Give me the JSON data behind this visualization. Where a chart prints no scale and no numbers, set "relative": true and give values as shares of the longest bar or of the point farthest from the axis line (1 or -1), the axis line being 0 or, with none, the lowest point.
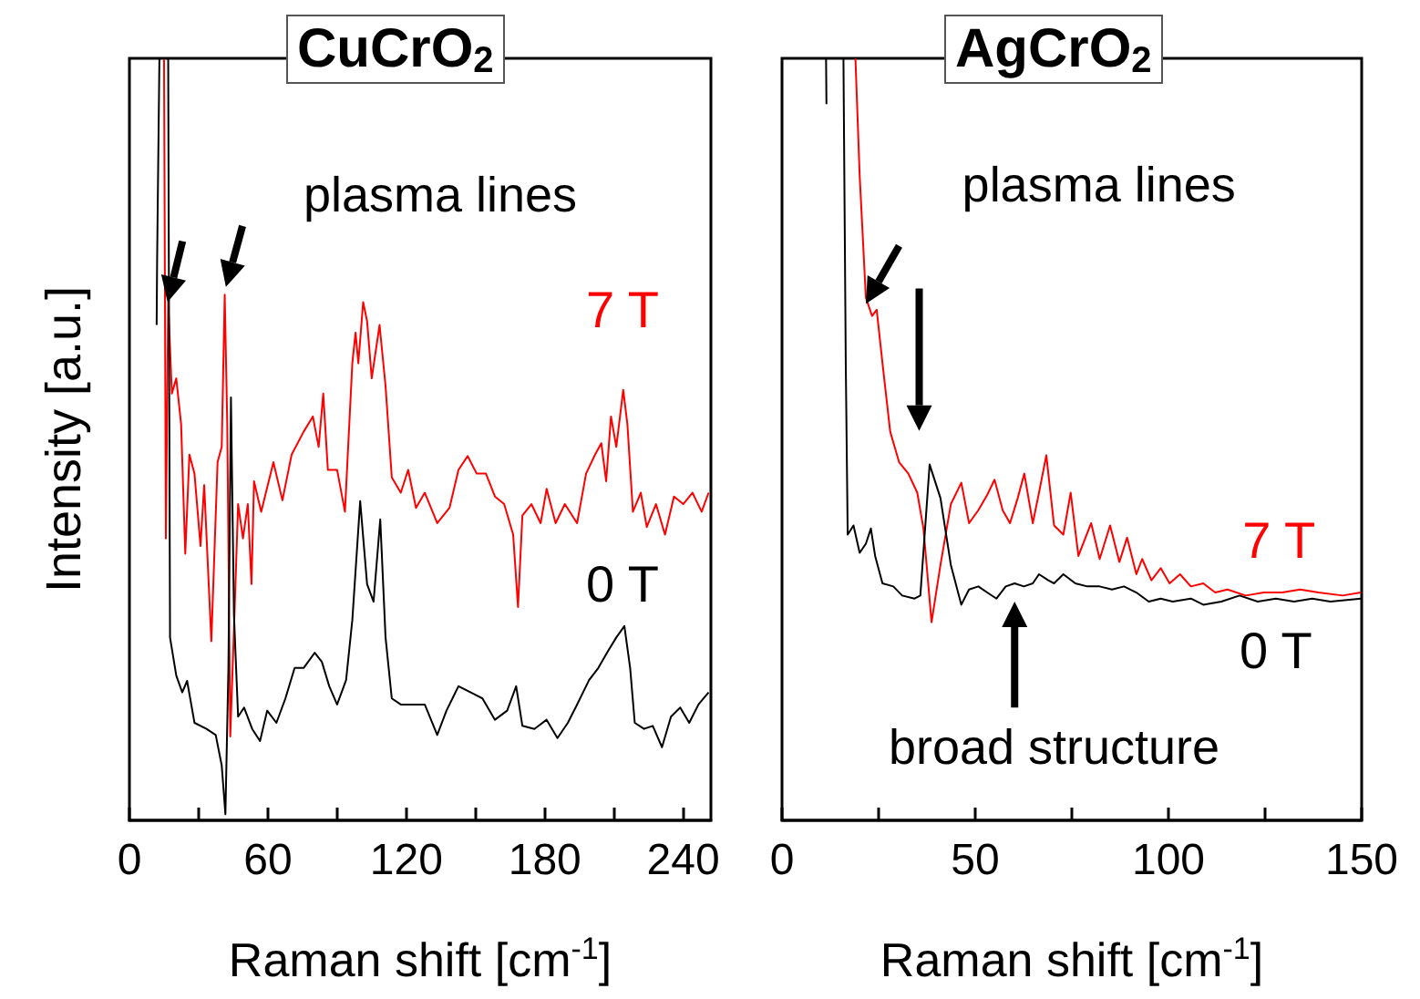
{
  "chart_data": [
    {
      "type": "line",
      "title": "CuCrO$_{2}$",
      "xlabel": "Raman shift [cm$^{-1}$]",
      "ylabel": "Intensity [a.u.]",
      "relative": true,
      "xlim": [
        0,
        252
      ],
      "xticks": [
        0,
        {
          "value": 30,
          "label": null
        },
        60,
        {
          "value": 90,
          "label": null
        },
        120,
        {
          "value": 150,
          "label": null
        },
        180,
        {
          "value": 210,
          "label": null
        },
        240
      ],
      "annotations": [
        "plasma lines"
      ],
      "series": [
        {
          "name": "7 T",
          "color": "#ff0000",
          "x": [
            15,
            15.8,
            16.8,
            18.4,
            20.3,
            22.4,
            24.2,
            26,
            28.2,
            30.8,
            32.4,
            35.5,
            38.2,
            40,
            41.3,
            42.4,
            43.7,
            45.3,
            47.1,
            49.2,
            51.3,
            52.9,
            54,
            57.1,
            62.4,
            66.3,
            70.3,
            75.5,
            79.5,
            82,
            84,
            86,
            90,
            93.4,
            96.6,
            98,
            99.2,
            101.3,
            103,
            105,
            108.4,
            111,
            113.7,
            117.6,
            120.8,
            124.2,
            128,
            133.4,
            138.7,
            142.6,
            146.6,
            150.5,
            154.5,
            158.4,
            162.4,
            166.3,
            168.4,
            170.3,
            174.2,
            178.2,
            180.8,
            184.7,
            188.7,
            194,
            197.9,
            201.8,
            204.5,
            206.6,
            208.7,
            211,
            214,
            215.8,
            218.2,
            221.6,
            224.2,
            228.2,
            232.1,
            236,
            240,
            244,
            248,
            251
          ],
          "values": [
            1,
            0.37,
            0.68,
            0.56,
            0.58,
            0.52,
            0.35,
            0.48,
            0.455,
            0.36,
            0.44,
            0.235,
            0.47,
            0.49,
            0.69,
            0.52,
            0.11,
            0.25,
            0.415,
            0.37,
            0.415,
            0.31,
            0.445,
            0.405,
            0.47,
            0.42,
            0.48,
            0.51,
            0.53,
            0.49,
            0.56,
            0.46,
            0.46,
            0.405,
            0.6,
            0.64,
            0.6,
            0.68,
            0.655,
            0.58,
            0.65,
            0.57,
            0.45,
            0.43,
            0.46,
            0.41,
            0.43,
            0.39,
            0.41,
            0.46,
            0.478,
            0.455,
            0.455,
            0.425,
            0.415,
            0.375,
            0.28,
            0.4,
            0.415,
            0.39,
            0.435,
            0.39,
            0.415,
            0.39,
            0.455,
            0.48,
            0.495,
            0.445,
            0.53,
            0.49,
            0.565,
            0.52,
            0.405,
            0.43,
            0.385,
            0.415,
            0.375,
            0.425,
            0.415,
            0.43,
            0.405,
            0.43
          ]
        },
        {
          "name": "0 T",
          "color": "#000000",
          "x": [
            11.8,
            12,
            13,
            16.8,
            17.6,
            20.3,
            22.9,
            25,
            28.2,
            33.4,
            37.4,
            40,
            41.6,
            42.9,
            44,
            45.3,
            47.1,
            49.7,
            53.2,
            56.6,
            59.7,
            63.7,
            67.6,
            71.6,
            75.5,
            80.3,
            83.4,
            86.6,
            90,
            93.9,
            96.6,
            100,
            103,
            105.8,
            108.7,
            111,
            113.7,
            117.6,
            122.9,
            128,
            133.4,
            137.4,
            142.6,
            147.9,
            153,
            158.4,
            163.7,
            167.6,
            170.3,
            175.5,
            180.8,
            185.5,
            190,
            194,
            199.2,
            203.2,
            207,
            211,
            214.5,
            217,
            219,
            223,
            226.8,
            230.8,
            234.7,
            238.7,
            242.6,
            246.6,
            251
          ],
          "values": [
            0.65,
            0.735,
            1,
            1,
            0.24,
            0.19,
            0.168,
            0.183,
            0.128,
            0.12,
            0.112,
            0.072,
            0.008,
            0.2,
            0.555,
            0.27,
            0.136,
            0.148,
            0.12,
            0.104,
            0.144,
            0.128,
            0.16,
            0.2,
            0.2,
            0.22,
            0.208,
            0.176,
            0.152,
            0.184,
            0.263,
            0.419,
            0.31,
            0.287,
            0.395,
            0.24,
            0.16,
            0.152,
            0.152,
            0.152,
            0.112,
            0.144,
            0.176,
            0.168,
            0.16,
            0.132,
            0.144,
            0.176,
            0.124,
            0.12,
            0.132,
            0.108,
            0.128,
            0.152,
            0.184,
            0.2,
            0.22,
            0.24,
            0.255,
            0.2,
            0.128,
            0.12,
            0.124,
            0.096,
            0.136,
            0.148,
            0.128,
            0.152,
            0.168
          ]
        }
      ]
    },
    {
      "type": "line",
      "title": "AgCrO$_{2}$",
      "xlabel": "Raman shift [cm$^{-1}$]",
      "relative": true,
      "xlim": [
        0,
        150
      ],
      "xticks": [
        0,
        {
          "value": 25,
          "label": null
        },
        50,
        {
          "value": 75,
          "label": null
        },
        100,
        {
          "value": 125,
          "label": null
        },
        150
      ],
      "annotations": [
        "plasma lines",
        "broad structure"
      ],
      "series": [
        {
          "name": "7 T",
          "color": "#ff0000",
          "x": [
            19,
            20.1,
            21.7,
            23.3,
            24.5,
            26,
            28,
            30.3,
            32.7,
            35,
            36.6,
            38.7,
            41,
            43.7,
            46.4,
            48.4,
            50.8,
            53.1,
            55,
            57.1,
            59,
            61,
            62.7,
            64.9,
            66.5,
            68.4,
            70.4,
            72.8,
            74.7,
            76.7,
            80,
            82.2,
            84.9,
            87.3,
            89.3,
            91.7,
            93.2,
            95.6,
            98,
            100.3,
            103,
            105.8,
            109,
            112.1,
            115.3,
            120,
            124.7,
            129.4,
            134.1,
            138.8,
            145.1,
            149.8
          ],
          "values": [
            1,
            0.846,
            0.686,
            0.662,
            0.67,
            0.6,
            0.51,
            0.47,
            0.455,
            0.43,
            0.383,
            0.26,
            0.335,
            0.415,
            0.443,
            0.39,
            0.407,
            0.427,
            0.447,
            0.407,
            0.39,
            0.423,
            0.455,
            0.39,
            0.43,
            0.479,
            0.387,
            0.375,
            0.43,
            0.347,
            0.39,
            0.343,
            0.387,
            0.339,
            0.371,
            0.323,
            0.343,
            0.315,
            0.331,
            0.311,
            0.323,
            0.307,
            0.311,
            0.299,
            0.303,
            0.295,
            0.299,
            0.299,
            0.303,
            0.299,
            0.295,
            0.299
          ]
        },
        {
          "name": "0 T",
          "color": "#000000",
          "x": [
            11.4,
            11.5,
            13,
            15.9,
            16.5,
            17,
            18.5,
            20.1,
            21.7,
            23,
            24.1,
            26,
            28.8,
            31.1,
            34.3,
            35.8,
            38.2,
            41,
            43.7,
            46.4,
            48.4,
            50.8,
            53.1,
            55.5,
            57.9,
            60.2,
            62.6,
            64.9,
            66.5,
            68.9,
            70.4,
            72.8,
            75.9,
            79,
            82.2,
            85.4,
            88.5,
            91.7,
            94.9,
            98,
            101.1,
            105.8,
            109,
            113.7,
            118.4,
            123.1,
            127.8,
            132.5,
            137.2,
            141.9,
            149.8
          ],
          "values": [
            1,
            0.94,
            null,
            1,
            0.6,
            0.375,
            0.387,
            0.351,
            0.363,
            0.383,
            0.347,
            0.311,
            0.307,
            0.295,
            0.291,
            0.295,
            0.467,
            0.423,
            0.335,
            0.283,
            0.303,
            0.307,
            0.299,
            0.291,
            0.307,
            0.311,
            0.307,
            0.311,
            0.323,
            0.315,
            0.311,
            0.323,
            0.311,
            0.307,
            0.307,
            0.303,
            0.307,
            0.299,
            0.287,
            0.291,
            0.287,
            0.291,
            0.283,
            0.287,
            0.295,
            0.287,
            0.291,
            0.287,
            0.291,
            0.287,
            0.291
          ]
        }
      ]
    }
  ]
}
